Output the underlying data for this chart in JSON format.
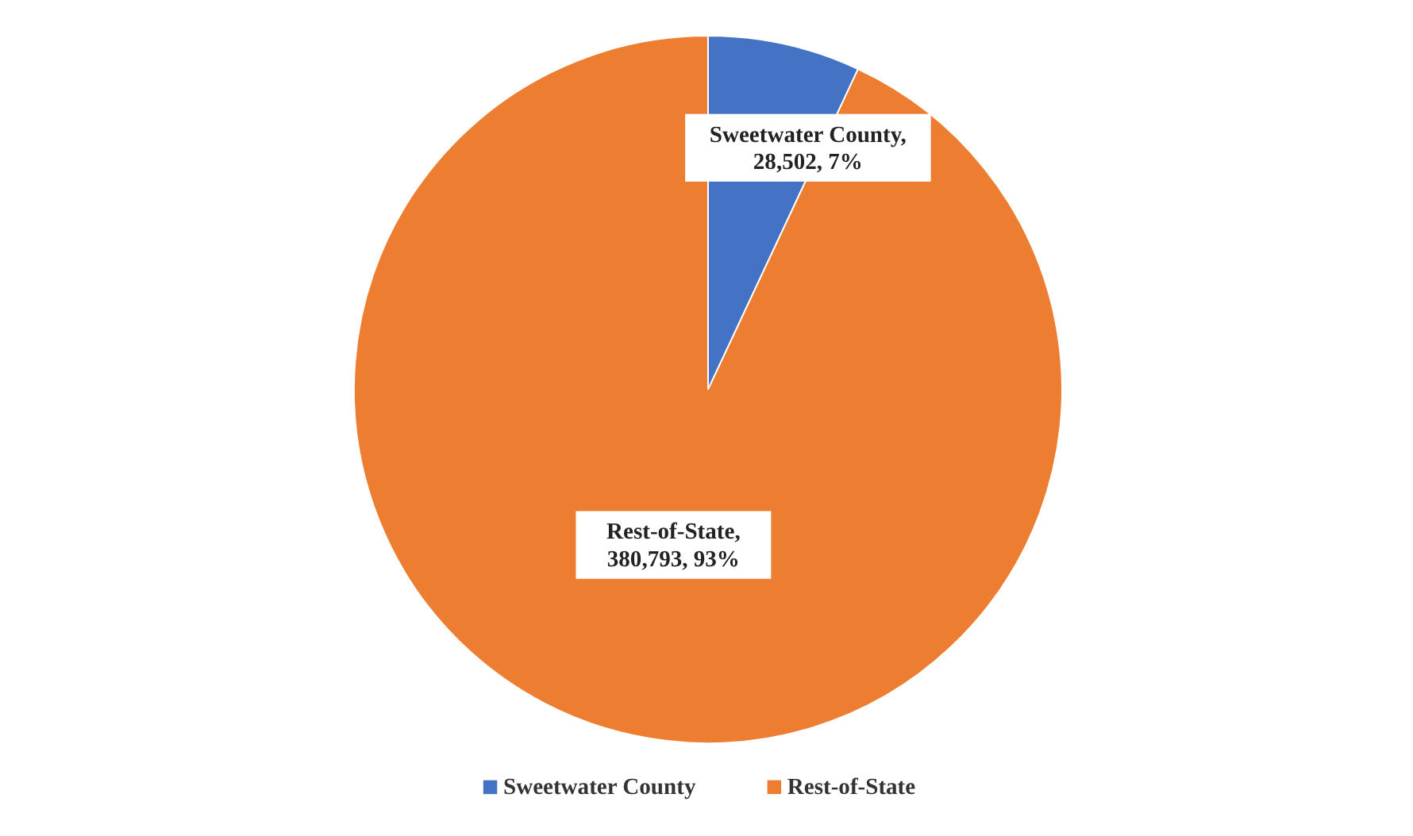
{
  "chart_data": {
    "type": "pie",
    "categories": [
      "Sweetwater County",
      "Rest-of-State"
    ],
    "values": [
      28502,
      380793
    ],
    "colors": [
      "#4472c4",
      "#ed7d31"
    ],
    "value_labels": [
      "Sweetwater County, 28,502, 7%",
      "Rest-of-State, 380,793, 93%"
    ],
    "legend": "bottom"
  }
}
